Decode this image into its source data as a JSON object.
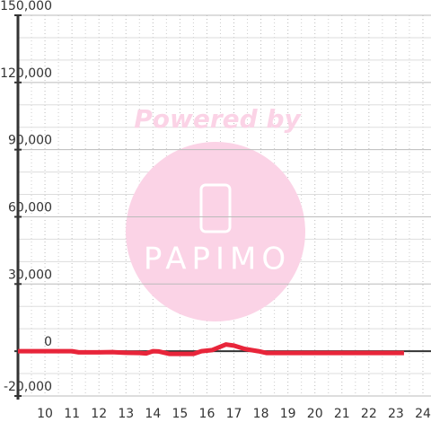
{
  "chart_data": {
    "type": "line",
    "watermark": {
      "top": "Powered by",
      "logo": "PAPIMO"
    },
    "xlim": [
      9,
      24.3
    ],
    "xticks": [
      10,
      11,
      12,
      13,
      14,
      15,
      16,
      17,
      18,
      19,
      20,
      21,
      22,
      23,
      24
    ],
    "minor_xticks": [
      9.5,
      10.5,
      11.5,
      12.5,
      13.5,
      14.5,
      15.5,
      16.5,
      17.5,
      18.5,
      19.5,
      20.5,
      21.5,
      22.5,
      23.5
    ],
    "ylim": [
      -20000,
      150000
    ],
    "yticks": [
      {
        "value": -20000,
        "label": "-20,000"
      },
      0,
      {
        "value": 30000,
        "label": "30,000"
      },
      {
        "value": 60000,
        "label": "60,000"
      },
      {
        "value": 90000,
        "label": "90,000"
      },
      {
        "value": 120000,
        "label": "120,000"
      },
      {
        "value": 150000,
        "label": "150,000"
      }
    ],
    "minor_yticks": [
      -10000,
      10000,
      20000,
      40000,
      50000,
      70000,
      80000,
      100000,
      110000,
      130000,
      140000
    ],
    "grid": true,
    "series": [
      {
        "color": "#e8253a",
        "x": [
          9,
          10,
          11,
          11.25,
          12,
          12.5,
          13,
          13.5,
          13.75,
          14,
          14.2,
          14.6,
          15.5,
          15.8,
          16.2,
          16.7,
          17,
          17.4,
          17.9,
          18.2,
          19,
          20,
          21,
          22,
          23.3
        ],
        "values": [
          0,
          0,
          0,
          -500,
          -500,
          -400,
          -700,
          -800,
          -1000,
          0,
          -100,
          -1200,
          -1200,
          0,
          500,
          3000,
          2500,
          1000,
          0,
          -800,
          -800,
          -800,
          -800,
          -800,
          -800
        ]
      }
    ]
  }
}
